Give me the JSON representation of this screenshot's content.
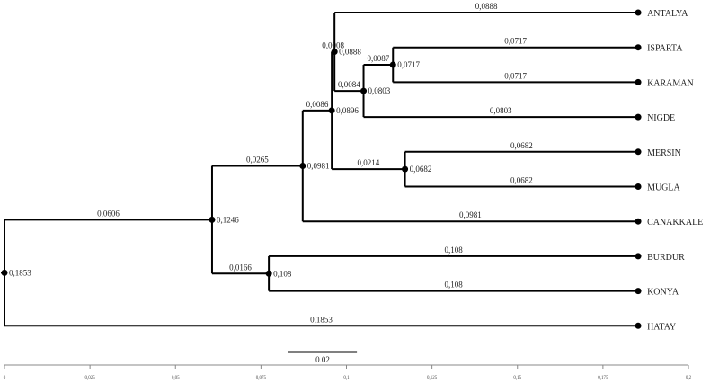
{
  "tree": {
    "height": 0.1853,
    "height_label": "0,1853",
    "children": [
      {
        "height": 0.1246,
        "height_label": "0,1246",
        "branch": 0.0606,
        "branch_label": "0,0606",
        "children": [
          {
            "height": 0.0981,
            "height_label": "0,0981",
            "branch": 0.0265,
            "branch_label": "0,0265",
            "children": [
              {
                "height": 0.0896,
                "height_label": "0,0896",
                "branch": 0.0086,
                "branch_label": "0,0086",
                "children": [
                  {
                    "height": 0.0888,
                    "height_label": "0,0888",
                    "branch": 0.0008,
                    "branch_label": "0,0008",
                    "children": [
                      {
                        "name": "ANTALYA",
                        "branch": 0.0888,
                        "branch_label": "0,0888"
                      },
                      {
                        "height": 0.0803,
                        "height_label": "0,0803",
                        "branch": 0.0084,
                        "branch_label": "0,0084",
                        "children": [
                          {
                            "height": 0.0717,
                            "height_label": "0,0717",
                            "branch": 0.0087,
                            "branch_label": "0,0087",
                            "children": [
                              {
                                "name": "ISPARTA",
                                "branch": 0.0717,
                                "branch_label": "0,0717"
                              },
                              {
                                "name": "KARAMAN",
                                "branch": 0.0717,
                                "branch_label": "0,0717"
                              }
                            ]
                          },
                          {
                            "name": "NIGDE",
                            "branch": 0.0803,
                            "branch_label": "0,0803"
                          }
                        ]
                      }
                    ]
                  },
                  {
                    "height": 0.0682,
                    "height_label": "0,0682",
                    "branch": 0.0214,
                    "branch_label": "0,0214",
                    "children": [
                      {
                        "name": "MERSIN",
                        "branch": 0.0682,
                        "branch_label": "0,0682"
                      },
                      {
                        "name": "MUGLA",
                        "branch": 0.0682,
                        "branch_label": "0,0682"
                      }
                    ]
                  }
                ]
              },
              {
                "name": "CANAKKALE",
                "branch": 0.0981,
                "branch_label": "0,0981"
              }
            ]
          },
          {
            "height": 0.108,
            "height_label": "0,108",
            "branch": 0.0166,
            "branch_label": "0,0166",
            "children": [
              {
                "name": "BURDUR",
                "branch": 0.108,
                "branch_label": "0,108"
              },
              {
                "name": "KONYA",
                "branch": 0.108,
                "branch_label": "0,108"
              }
            ]
          }
        ]
      },
      {
        "name": "HATAY",
        "branch": 0.1853,
        "branch_label": "0,1853"
      }
    ]
  },
  "scale_bar": 0.02,
  "axis": {
    "xlim": [
      0,
      0.2
    ],
    "xticks": [
      0,
      {
        "value": 0.025,
        "label": "0,025"
      },
      {
        "value": 0.05,
        "label": "0,05"
      },
      {
        "value": 0.075,
        "label": "0,075"
      },
      {
        "value": 0.1,
        "label": "0,1"
      },
      {
        "value": 0.125,
        "label": "0,125"
      },
      {
        "value": 0.15,
        "label": "0,15"
      },
      {
        "value": 0.175,
        "label": "0,175"
      },
      {
        "value": 0.2,
        "label": "0,2"
      }
    ]
  }
}
